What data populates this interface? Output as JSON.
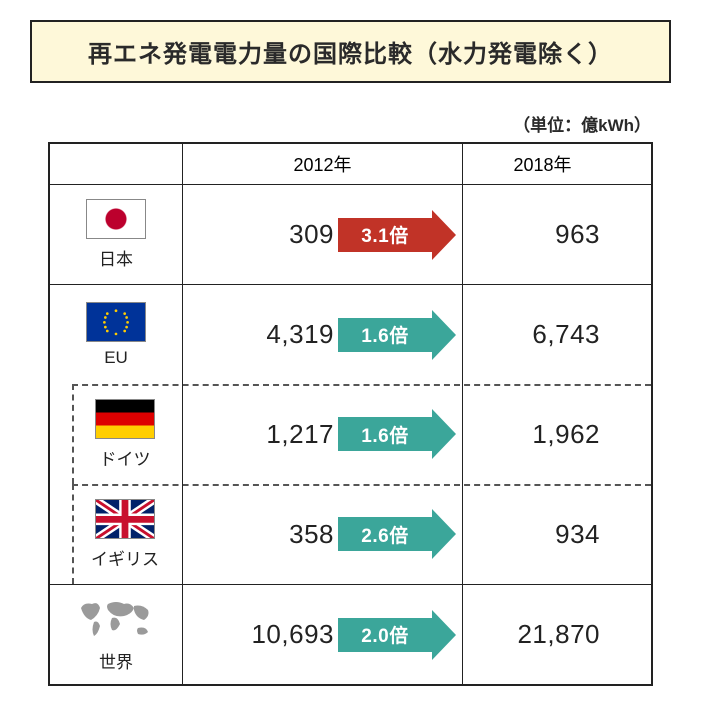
{
  "title": "再エネ発電電力量の国際比較（水力発電除く）",
  "unit": "（単位：億kWh）",
  "columns": {
    "country": "",
    "y2012": "2012年",
    "y2018": "2018年"
  },
  "rows": [
    {
      "country": "日本",
      "flag": "jp",
      "sub": false,
      "val2012": "309",
      "multiplier": "3.1倍",
      "arrow_color": "#c13327",
      "val2018": "963"
    },
    {
      "country": "EU",
      "flag": "eu",
      "sub": false,
      "val2012": "4,319",
      "multiplier": "1.6倍",
      "arrow_color": "#3ba69a",
      "val2018": "6,743"
    },
    {
      "country": "ドイツ",
      "flag": "de",
      "sub": true,
      "val2012": "1,217",
      "multiplier": "1.6倍",
      "arrow_color": "#3ba69a",
      "val2018": "1,962"
    },
    {
      "country": "イギリス",
      "flag": "uk",
      "sub": true,
      "val2012": "358",
      "multiplier": "2.6倍",
      "arrow_color": "#3ba69a",
      "val2018": "934"
    },
    {
      "country": "世界",
      "flag": "world",
      "sub": false,
      "val2012": "10,693",
      "multiplier": "2.0倍",
      "arrow_color": "#3ba69a",
      "val2018": "21,870"
    }
  ],
  "colors": {
    "title_bg": "#fef8d9",
    "border": "#222222",
    "text": "#2a2a2a",
    "dashed": "#555555"
  },
  "fontsize": {
    "title": 24,
    "unit": 17,
    "header": 18,
    "value": 26,
    "country": 17,
    "arrow": 19
  }
}
